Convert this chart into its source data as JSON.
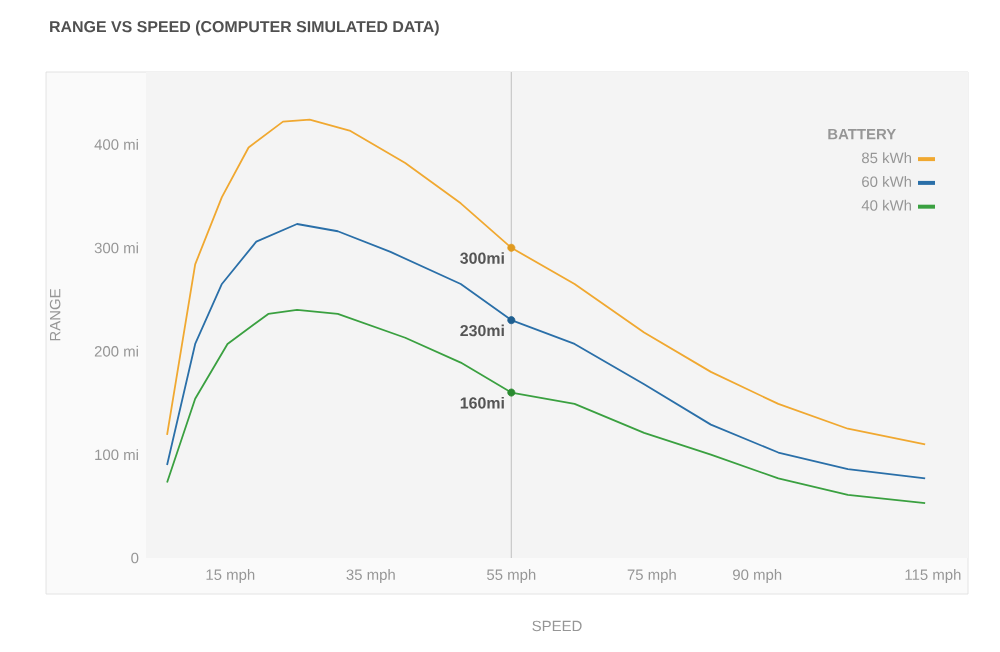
{
  "chart_data": {
    "type": "line",
    "title": "RANGE VS SPEED (COMPUTER SIMULATED DATA)",
    "xlabel": "SPEED",
    "ylabel": "RANGE",
    "legend_title": "BATTERY",
    "legend": "top right",
    "xlim": [
      3,
      120
    ],
    "ylim": [
      0,
      470
    ],
    "xticks": [
      {
        "value": 15,
        "label": "15 mph"
      },
      {
        "value": 35,
        "label": "35 mph"
      },
      {
        "value": 55,
        "label": "55 mph"
      },
      {
        "value": 75,
        "label": "75 mph"
      },
      {
        "value": 90,
        "label": "90 mph"
      },
      {
        "value": 115,
        "label": "115 mph"
      }
    ],
    "yticks": [
      0,
      {
        "value": 100,
        "label": "100 mi"
      },
      {
        "value": 200,
        "label": "200 mi"
      },
      {
        "value": 300,
        "label": "300 mi"
      },
      {
        "value": 400,
        "label": "400 mi"
      }
    ],
    "series": [
      {
        "name": "85 kWh",
        "color": "#f0a830",
        "x": [
          6,
          10,
          13.8,
          17.6,
          22.5,
          26.3,
          32.1,
          39.9,
          47.8,
          55,
          64,
          73.9,
          83.4,
          93,
          102.9,
          113.9
        ],
        "values": [
          119,
          284,
          349,
          397,
          422,
          424,
          413,
          382,
          343,
          300,
          265,
          218,
          180,
          149,
          125,
          110
        ]
      },
      {
        "name": "60 kWh",
        "color": "#2a6fa8",
        "x": [
          6,
          10,
          13.8,
          18.7,
          24.5,
          30.3,
          37.8,
          47.8,
          55,
          64,
          73.9,
          83.4,
          93,
          102.9,
          113.9
        ],
        "values": [
          90,
          207,
          265,
          306,
          323,
          316,
          296,
          265,
          230,
          207,
          168,
          129,
          102,
          86,
          77
        ]
      },
      {
        "name": "40 kWh",
        "color": "#3aa040",
        "x": [
          6,
          10,
          14.6,
          20.4,
          24.5,
          30.3,
          39.9,
          47.8,
          55,
          64,
          73.9,
          83.4,
          93,
          102.9,
          113.9
        ],
        "values": [
          73,
          154,
          207,
          236,
          240,
          236,
          213,
          189,
          160,
          149,
          121,
          100,
          77,
          61,
          53
        ]
      },
      {
        "type": "scatter",
        "color": "#e09a20",
        "x": [
          55
        ],
        "values": [
          300
        ],
        "value_labels": [
          "300mi"
        ]
      },
      {
        "type": "scatter",
        "color": "#1f5f90",
        "x": [
          55
        ],
        "values": [
          230
        ],
        "value_labels": [
          "230mi"
        ]
      },
      {
        "type": "scatter",
        "color": "#2a8a30",
        "x": [
          55
        ],
        "values": [
          160
        ],
        "value_labels": [
          "160mi"
        ]
      }
    ],
    "ref_lines": [
      {
        "axis": "x",
        "value": 55,
        "color": "#c8c8c8"
      }
    ]
  }
}
